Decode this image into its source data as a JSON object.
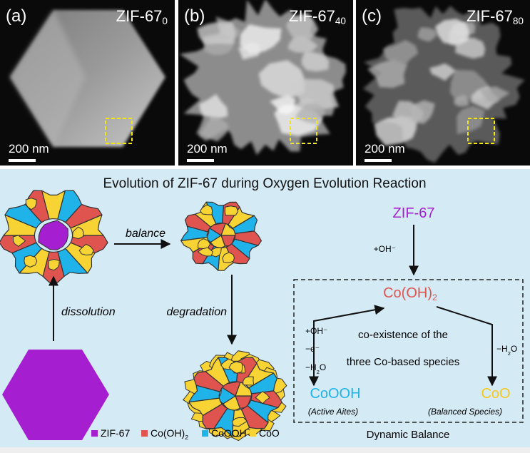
{
  "panels": [
    {
      "label": "(a)",
      "title": "ZIF-67",
      "subscript": "0",
      "scale": "200 nm"
    },
    {
      "label": "(b)",
      "title": "ZIF-67",
      "subscript": "40",
      "scale": "200 nm"
    },
    {
      "label": "(c)",
      "title": "ZIF-67",
      "subscript": "80",
      "scale": "200 nm"
    }
  ],
  "diagram": {
    "title": "Evolution of ZIF-67 during Oxygen Evolution Reaction",
    "balance": "balance",
    "dissolution": "dissolution",
    "degradation": "degradation",
    "legend": [
      {
        "name": "ZIF-67"
      },
      {
        "name": "Co(OH)",
        "sub": "2"
      },
      {
        "name": "CoOOH"
      },
      {
        "name": "CoO"
      }
    ],
    "scheme": {
      "start": "ZIF-67",
      "step": "+OH⁻",
      "center": {
        "text": "Co(OH)",
        "sub": "2"
      },
      "note": [
        "co-existence of the",
        "three Co-based species"
      ],
      "left_conditions": [
        "+OH⁻",
        "−e⁻",
        {
          "text": "−H",
          "sub": "2",
          "after": "O"
        }
      ],
      "right_condition": {
        "text": "−H",
        "sub": "2",
        "after": "O"
      },
      "left_product": "CoOOH",
      "left_caption": "(Active Aites)",
      "right_product": "CoO",
      "right_caption": "(Balanced Species)",
      "footer": "Dynamic Balance"
    }
  }
}
